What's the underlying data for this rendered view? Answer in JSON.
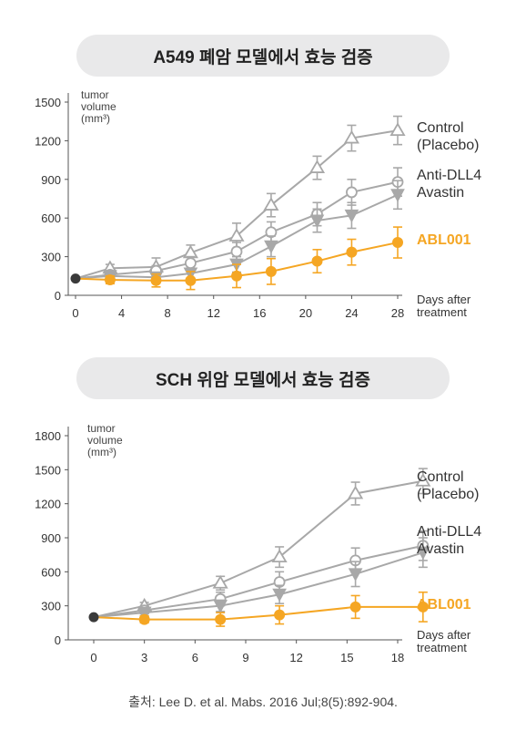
{
  "chart_data": [
    {
      "type": "line",
      "title": "A549 폐암 모델에서 효능 검증",
      "ylabel": "tumor volume (mm³)",
      "ylabel_lines": [
        "tumor",
        "volume",
        "(mm³)"
      ],
      "xlabel": "Days after treatment",
      "xlabel_lines": [
        "Days after",
        "treatment"
      ],
      "xlim": [
        0,
        28
      ],
      "ylim": [
        0,
        1500
      ],
      "xticks": [
        0,
        4,
        8,
        12,
        16,
        20,
        24,
        28
      ],
      "yticks": [
        0,
        300,
        600,
        900,
        1200,
        1500
      ],
      "grid": false,
      "series": [
        {
          "name": "Control (Placebo)",
          "label_lines": [
            "Control",
            "(Placebo)"
          ],
          "color": "#a8a8a8",
          "marker": "triangle-up-open",
          "x": [
            0,
            3,
            7,
            10,
            14,
            17,
            21,
            24,
            28
          ],
          "y": [
            130,
            210,
            220,
            330,
            460,
            700,
            990,
            1220,
            1280
          ],
          "err": [
            20,
            30,
            70,
            60,
            100,
            90,
            90,
            100,
            110
          ]
        },
        {
          "name": "Anti-DLL4",
          "label_lines": [
            "Anti-DLL4"
          ],
          "color": "#a8a8a8",
          "marker": "circle-open",
          "x": [
            0,
            3,
            7,
            10,
            14,
            17,
            21,
            24,
            28
          ],
          "y": [
            130,
            160,
            190,
            250,
            340,
            490,
            630,
            800,
            880
          ],
          "err": [
            20,
            30,
            40,
            50,
            70,
            80,
            90,
            100,
            110
          ]
        },
        {
          "name": "Avastin",
          "label_lines": [
            "Avastin"
          ],
          "color": "#a8a8a8",
          "marker": "triangle-down-filled",
          "x": [
            0,
            3,
            7,
            10,
            14,
            17,
            21,
            24,
            28
          ],
          "y": [
            130,
            150,
            140,
            170,
            240,
            380,
            580,
            620,
            780
          ],
          "err": [
            20,
            30,
            30,
            40,
            60,
            80,
            90,
            100,
            110
          ]
        },
        {
          "name": "ABL001",
          "label_lines": [
            "ABL001"
          ],
          "color": "#f5a623",
          "marker": "circle-filled",
          "x": [
            0,
            3,
            7,
            10,
            14,
            17,
            21,
            24,
            28
          ],
          "y": [
            130,
            120,
            115,
            115,
            150,
            185,
            265,
            335,
            410
          ],
          "err": [
            20,
            30,
            50,
            70,
            90,
            100,
            90,
            100,
            120
          ]
        }
      ]
    },
    {
      "type": "line",
      "title": "SCH 위암 모델에서 효능 검증",
      "ylabel": "tumor volume (mm³)",
      "ylabel_lines": [
        "tumor",
        "volume",
        "(mm³)"
      ],
      "xlabel": "Days after treatment",
      "xlabel_lines": [
        "Days after",
        "treatment"
      ],
      "xlim": [
        0,
        18
      ],
      "ylim": [
        0,
        1800
      ],
      "xticks": [
        0,
        3,
        6,
        9,
        12,
        15,
        18
      ],
      "yticks": [
        0,
        300,
        600,
        900,
        1200,
        1500,
        1800
      ],
      "grid": false,
      "series": [
        {
          "name": "Control (Placebo)",
          "label_lines": [
            "Control",
            "(Placebo)"
          ],
          "color": "#a8a8a8",
          "marker": "triangle-up-open",
          "x": [
            0,
            3,
            7.5,
            11,
            15.5,
            19.5
          ],
          "y": [
            200,
            300,
            500,
            730,
            1290,
            1400
          ],
          "err": [
            20,
            30,
            60,
            90,
            100,
            110
          ]
        },
        {
          "name": "Anti-DLL4",
          "label_lines": [
            "Anti-DLL4"
          ],
          "color": "#a8a8a8",
          "marker": "circle-open",
          "x": [
            0,
            3,
            7.5,
            11,
            15.5,
            19.5
          ],
          "y": [
            200,
            260,
            360,
            510,
            700,
            830
          ],
          "err": [
            20,
            30,
            60,
            90,
            110,
            130
          ]
        },
        {
          "name": "Avastin",
          "label_lines": [
            "Avastin"
          ],
          "color": "#a8a8a8",
          "marker": "triangle-down-filled",
          "x": [
            0,
            3,
            7.5,
            11,
            15.5,
            19.5
          ],
          "y": [
            200,
            240,
            300,
            400,
            580,
            770
          ],
          "err": [
            20,
            30,
            50,
            80,
            110,
            130
          ]
        },
        {
          "name": "ABL001",
          "label_lines": [
            "ABL001"
          ],
          "color": "#f5a623",
          "marker": "circle-filled",
          "x": [
            0,
            3,
            7.5,
            11,
            15.5,
            19.5
          ],
          "y": [
            200,
            180,
            180,
            220,
            290,
            290
          ],
          "err": [
            20,
            30,
            60,
            80,
            100,
            130
          ]
        }
      ]
    }
  ],
  "source_text": "출처: Lee D. et al. Mabs. 2016 Jul;8(5):892-904."
}
